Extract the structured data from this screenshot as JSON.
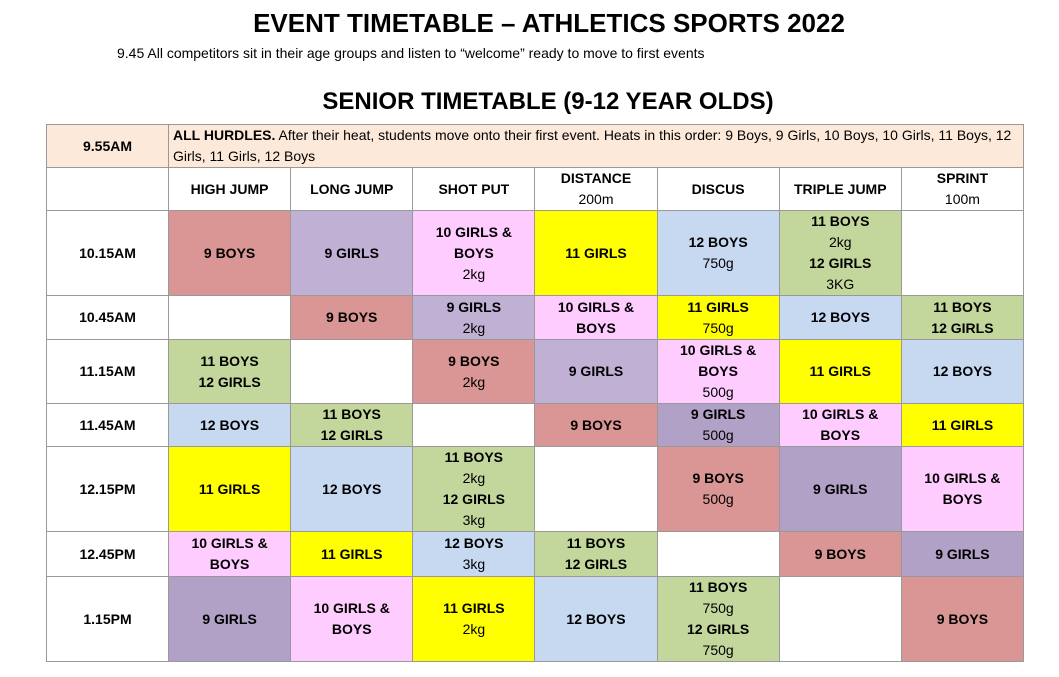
{
  "title": "EVENT TIMETABLE – ATHLETICS SPORTS 2022",
  "intro": "9.45 All competitors sit in their age groups and listen to “welcome” ready to move to first events",
  "subtitle": "SENIOR TIMETABLE (9-12 YEAR OLDS)",
  "hurdles": {
    "time": "9.55AM",
    "lead": "ALL HURDLES.",
    "text": "After their heat, students move onto their first event. Heats in this order: 9 Boys, 9 Girls, 10 Boys, 10 Girls, 11 Boys, 12 Girls, 11 Girls, 12 Boys"
  },
  "table": {
    "header": [
      {
        "name": "HIGH JUMP"
      },
      {
        "name": "LONG JUMP"
      },
      {
        "name": "SHOT PUT"
      },
      {
        "name": "DISTANCE",
        "sub": "200m"
      },
      {
        "name": "DISCUS"
      },
      {
        "name": "TRIPLE JUMP"
      },
      {
        "name": "SPRINT",
        "sub": "100m"
      }
    ],
    "rows": [
      {
        "time": "10.15AM",
        "cells": [
          {
            "lines": [
              "9 BOYS"
            ],
            "color": "#d99694"
          },
          {
            "lines": [
              "9 GIRLS"
            ],
            "color": "#c0b0d4"
          },
          {
            "lines": [
              "10 GIRLS &",
              "BOYS",
              "2kg"
            ],
            "color": "#ffccff"
          },
          {
            "lines": [
              "11 GIRLS"
            ],
            "color": "#ffff00"
          },
          {
            "lines": [
              "12 BOYS",
              "750g"
            ],
            "color": "#c6d9f1"
          },
          {
            "lines": [
              "11 BOYS",
              "2kg",
              "12 GIRLS",
              "3KG"
            ],
            "color": "#c3d69b"
          },
          {
            "lines": []
          }
        ]
      },
      {
        "time": "10.45AM",
        "cells": [
          {
            "lines": []
          },
          {
            "lines": [
              "9 BOYS"
            ],
            "color": "#d99694"
          },
          {
            "lines": [
              "9 GIRLS",
              "2kg"
            ],
            "color": "#c0b0d4"
          },
          {
            "lines": [
              "10 GIRLS &",
              "BOYS"
            ],
            "color": "#ffccff"
          },
          {
            "lines": [
              "11 GIRLS",
              "750g"
            ],
            "color": "#ffff00"
          },
          {
            "lines": [
              "12 BOYS"
            ],
            "color": "#c6d9f1"
          },
          {
            "lines": [
              "11 BOYS",
              "12 GIRLS"
            ],
            "color": "#c3d69b"
          }
        ]
      },
      {
        "time": "11.15AM",
        "cells": [
          {
            "lines": [
              "11 BOYS",
              "12 GIRLS"
            ],
            "color": "#c3d69b"
          },
          {
            "lines": []
          },
          {
            "lines": [
              "9 BOYS",
              "2kg"
            ],
            "color": "#d99694"
          },
          {
            "lines": [
              "9 GIRLS"
            ],
            "color": "#c0b0d4"
          },
          {
            "lines": [
              "10 GIRLS &",
              "BOYS",
              "500g"
            ],
            "color": "#ffccff"
          },
          {
            "lines": [
              "11 GIRLS"
            ],
            "color": "#ffff00"
          },
          {
            "lines": [
              "12 BOYS"
            ],
            "color": "#c6d9f1"
          }
        ]
      },
      {
        "time": "11.45AM",
        "cells": [
          {
            "lines": [
              "12 BOYS"
            ],
            "color": "#c6d9f1"
          },
          {
            "lines": [
              "11 BOYS",
              "12 GIRLS"
            ],
            "color": "#c3d69b"
          },
          {
            "lines": []
          },
          {
            "lines": [
              "9 BOYS"
            ],
            "color": "#d99694"
          },
          {
            "lines": [
              "9 GIRLS",
              "500g"
            ],
            "color": "#b2a1c7"
          },
          {
            "lines": [
              "10 GIRLS &",
              "BOYS"
            ],
            "color": "#ffccff"
          },
          {
            "lines": [
              "11 GIRLS"
            ],
            "color": "#ffff00"
          }
        ]
      },
      {
        "time": "12.15PM",
        "cells": [
          {
            "lines": [
              "11 GIRLS"
            ],
            "color": "#ffff00"
          },
          {
            "lines": [
              "12 BOYS"
            ],
            "color": "#c6d9f1"
          },
          {
            "lines": [
              "11 BOYS",
              "2kg",
              "12 GIRLS",
              "3kg"
            ],
            "color": "#c3d69b"
          },
          {
            "lines": []
          },
          {
            "lines": [
              "9 BOYS",
              "500g"
            ],
            "color": "#d99694"
          },
          {
            "lines": [
              "9 GIRLS"
            ],
            "color": "#b2a1c7"
          },
          {
            "lines": [
              "10 GIRLS &",
              "BOYS"
            ],
            "color": "#ffccff"
          }
        ]
      },
      {
        "time": "12.45PM",
        "cells": [
          {
            "lines": [
              "10 GIRLS &",
              "BOYS"
            ],
            "color": "#ffccff"
          },
          {
            "lines": [
              "11 GIRLS"
            ],
            "color": "#ffff00"
          },
          {
            "lines": [
              "12 BOYS",
              "3kg"
            ],
            "color": "#c6d9f1"
          },
          {
            "lines": [
              "11 BOYS",
              "12 GIRLS"
            ],
            "color": "#c3d69b"
          },
          {
            "lines": []
          },
          {
            "lines": [
              "9 BOYS"
            ],
            "color": "#d99694"
          },
          {
            "lines": [
              "9 GIRLS"
            ],
            "color": "#b2a1c7"
          }
        ]
      },
      {
        "time": "1.15PM",
        "cells": [
          {
            "lines": [
              "9 GIRLS"
            ],
            "color": "#b2a1c7"
          },
          {
            "lines": [
              "10 GIRLS &",
              "BOYS"
            ],
            "color": "#ffccff"
          },
          {
            "lines": [
              "11 GIRLS",
              "2kg"
            ],
            "color": "#ffff00"
          },
          {
            "lines": [
              "12 BOYS"
            ],
            "color": "#c6d9f1"
          },
          {
            "lines": [
              "11 BOYS",
              "750g",
              "12 GIRLS",
              "750g"
            ],
            "color": "#c3d69b"
          },
          {
            "lines": []
          },
          {
            "lines": [
              "9 BOYS"
            ],
            "color": "#d99694"
          }
        ]
      }
    ]
  }
}
